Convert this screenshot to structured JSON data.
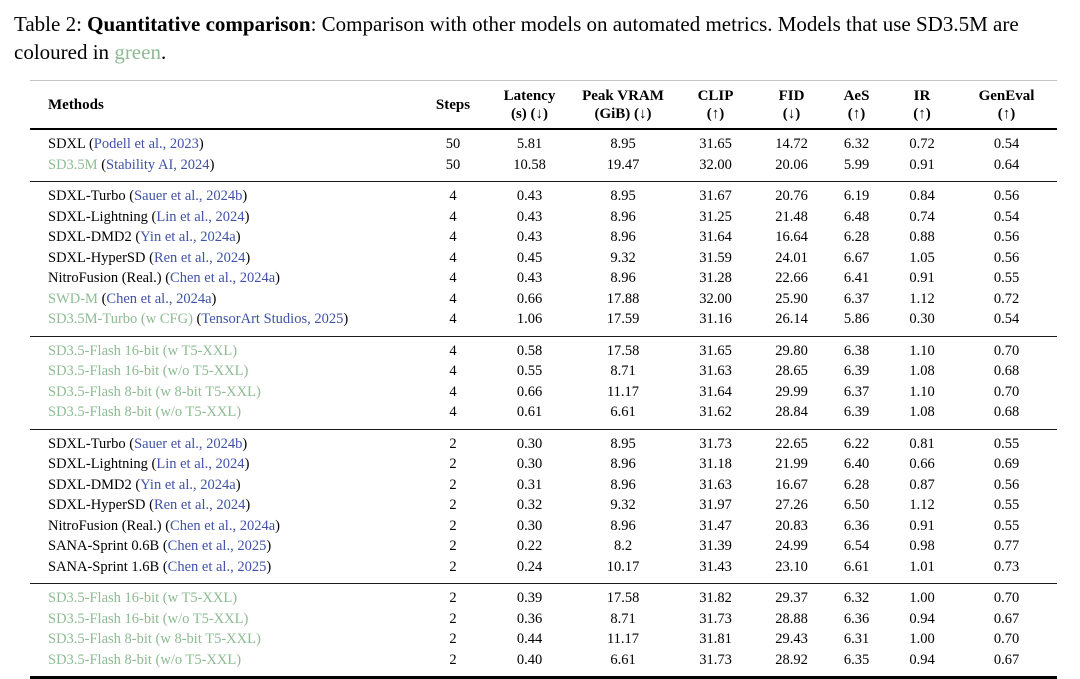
{
  "caption": {
    "prefix": "Table 2: ",
    "bold": "Quantitative comparison",
    "rest": ": Comparison with other models on automated metrics. Models that use SD3.5M are coloured in ",
    "green_word": "green",
    "period": "."
  },
  "colors": {
    "green_method": "#8dbb92",
    "citation_link": "#4052a8"
  },
  "table": {
    "columns": [
      {
        "key": "methods",
        "label": "Methods",
        "sub": ""
      },
      {
        "key": "steps",
        "label": "Steps",
        "sub": ""
      },
      {
        "key": "latency",
        "label": "Latency",
        "sub": "(s) (↓)"
      },
      {
        "key": "peak-vram",
        "label": "Peak VRAM",
        "sub": "(GiB) (↓)"
      },
      {
        "key": "clip",
        "label": "CLIP",
        "sub": "(↑)"
      },
      {
        "key": "fid",
        "label": "FID",
        "sub": "(↓)"
      },
      {
        "key": "aes",
        "label": "AeS",
        "sub": "(↑)"
      },
      {
        "key": "ir",
        "label": "IR",
        "sub": "(↑)"
      },
      {
        "key": "geneval",
        "label": "GenEval",
        "sub": "(↑)"
      }
    ],
    "groups": [
      {
        "rows": [
          {
            "method": "SDXL",
            "cite": "Podell et al., 2023",
            "green": false,
            "values": [
              "50",
              "5.81",
              "8.95",
              "31.65",
              "14.72",
              "6.32",
              "0.72",
              "0.54"
            ]
          },
          {
            "method": "SD3.5M",
            "cite": "Stability AI, 2024",
            "green": true,
            "values": [
              "50",
              "10.58",
              "19.47",
              "32.00",
              "20.06",
              "5.99",
              "0.91",
              "0.64"
            ]
          }
        ]
      },
      {
        "rows": [
          {
            "method": "SDXL-Turbo",
            "cite": "Sauer et al., 2024b",
            "green": false,
            "values": [
              "4",
              "0.43",
              "8.95",
              "31.67",
              "20.76",
              "6.19",
              "0.84",
              "0.56"
            ]
          },
          {
            "method": "SDXL-Lightning",
            "cite": "Lin et al., 2024",
            "green": false,
            "values": [
              "4",
              "0.43",
              "8.96",
              "31.25",
              "21.48",
              "6.48",
              "0.74",
              "0.54"
            ]
          },
          {
            "method": "SDXL-DMD2",
            "cite": "Yin et al., 2024a",
            "green": false,
            "values": [
              "4",
              "0.43",
              "8.96",
              "31.64",
              "16.64",
              "6.28",
              "0.88",
              "0.56"
            ]
          },
          {
            "method": "SDXL-HyperSD",
            "cite": "Ren et al., 2024",
            "green": false,
            "values": [
              "4",
              "0.45",
              "9.32",
              "31.59",
              "24.01",
              "6.67",
              "1.05",
              "0.56"
            ]
          },
          {
            "method": "NitroFusion (Real.)",
            "cite": "Chen et al., 2024a",
            "green": false,
            "values": [
              "4",
              "0.43",
              "8.96",
              "31.28",
              "22.66",
              "6.41",
              "0.91",
              "0.55"
            ]
          },
          {
            "method": "SWD-M",
            "cite": "Chen et al., 2024a",
            "green": true,
            "values": [
              "4",
              "0.66",
              "17.88",
              "32.00",
              "25.90",
              "6.37",
              "1.12",
              "0.72"
            ]
          },
          {
            "method": "SD3.5M-Turbo (w CFG)",
            "cite": "TensorArt Studios, 2025",
            "green": true,
            "values": [
              "4",
              "1.06",
              "17.59",
              "31.16",
              "26.14",
              "5.86",
              "0.30",
              "0.54"
            ]
          }
        ]
      },
      {
        "rows": [
          {
            "method": "SD3.5-Flash 16-bit (w T5-XXL)",
            "cite": "",
            "green": true,
            "values": [
              "4",
              "0.58",
              "17.58",
              "31.65",
              "29.80",
              "6.38",
              "1.10",
              "0.70"
            ]
          },
          {
            "method": "SD3.5-Flash 16-bit (w/o T5-XXL)",
            "cite": "",
            "green": true,
            "values": [
              "4",
              "0.55",
              "8.71",
              "31.63",
              "28.65",
              "6.39",
              "1.08",
              "0.68"
            ]
          },
          {
            "method": "SD3.5-Flash 8-bit (w 8-bit T5-XXL)",
            "cite": "",
            "green": true,
            "values": [
              "4",
              "0.66",
              "11.17",
              "31.64",
              "29.99",
              "6.37",
              "1.10",
              "0.70"
            ]
          },
          {
            "method": "SD3.5-Flash 8-bit (w/o T5-XXL)",
            "cite": "",
            "green": true,
            "values": [
              "4",
              "0.61",
              "6.61",
              "31.62",
              "28.84",
              "6.39",
              "1.08",
              "0.68"
            ]
          }
        ]
      },
      {
        "rows": [
          {
            "method": "SDXL-Turbo",
            "cite": "Sauer et al., 2024b",
            "green": false,
            "values": [
              "2",
              "0.30",
              "8.95",
              "31.73",
              "22.65",
              "6.22",
              "0.81",
              "0.55"
            ]
          },
          {
            "method": "SDXL-Lightning",
            "cite": "Lin et al., 2024",
            "green": false,
            "values": [
              "2",
              "0.30",
              "8.96",
              "31.18",
              "21.99",
              "6.40",
              "0.66",
              "0.69"
            ]
          },
          {
            "method": "SDXL-DMD2",
            "cite": "Yin et al., 2024a",
            "green": false,
            "values": [
              "2",
              "0.31",
              "8.96",
              "31.63",
              "16.67",
              "6.28",
              "0.87",
              "0.56"
            ]
          },
          {
            "method": "SDXL-HyperSD",
            "cite": "Ren et al., 2024",
            "green": false,
            "values": [
              "2",
              "0.32",
              "9.32",
              "31.97",
              "27.26",
              "6.50",
              "1.12",
              "0.55"
            ]
          },
          {
            "method": "NitroFusion (Real.)",
            "cite": "Chen et al., 2024a",
            "green": false,
            "values": [
              "2",
              "0.30",
              "8.96",
              "31.47",
              "20.83",
              "6.36",
              "0.91",
              "0.55"
            ]
          },
          {
            "method": "SANA-Sprint 0.6B",
            "cite": "Chen et al., 2025",
            "green": false,
            "values": [
              "2",
              "0.22",
              "8.2",
              "31.39",
              "24.99",
              "6.54",
              "0.98",
              "0.77"
            ]
          },
          {
            "method": "SANA-Sprint 1.6B",
            "cite": "Chen et al., 2025",
            "green": false,
            "values": [
              "2",
              "0.24",
              "10.17",
              "31.43",
              "23.10",
              "6.61",
              "1.01",
              "0.73"
            ]
          }
        ]
      },
      {
        "rows": [
          {
            "method": "SD3.5-Flash 16-bit (w T5-XXL)",
            "cite": "",
            "green": true,
            "values": [
              "2",
              "0.39",
              "17.58",
              "31.82",
              "29.37",
              "6.32",
              "1.00",
              "0.70"
            ]
          },
          {
            "method": "SD3.5-Flash 16-bit (w/o T5-XXL)",
            "cite": "",
            "green": true,
            "values": [
              "2",
              "0.36",
              "8.71",
              "31.73",
              "28.88",
              "6.36",
              "0.94",
              "0.67"
            ]
          },
          {
            "method": "SD3.5-Flash 8-bit (w 8-bit T5-XXL)",
            "cite": "",
            "green": true,
            "values": [
              "2",
              "0.44",
              "11.17",
              "31.81",
              "29.43",
              "6.31",
              "1.00",
              "0.70"
            ]
          },
          {
            "method": "SD3.5-Flash 8-bit (w/o T5-XXL)",
            "cite": "",
            "green": true,
            "values": [
              "2",
              "0.40",
              "6.61",
              "31.73",
              "28.92",
              "6.35",
              "0.94",
              "0.67"
            ]
          }
        ]
      }
    ]
  }
}
